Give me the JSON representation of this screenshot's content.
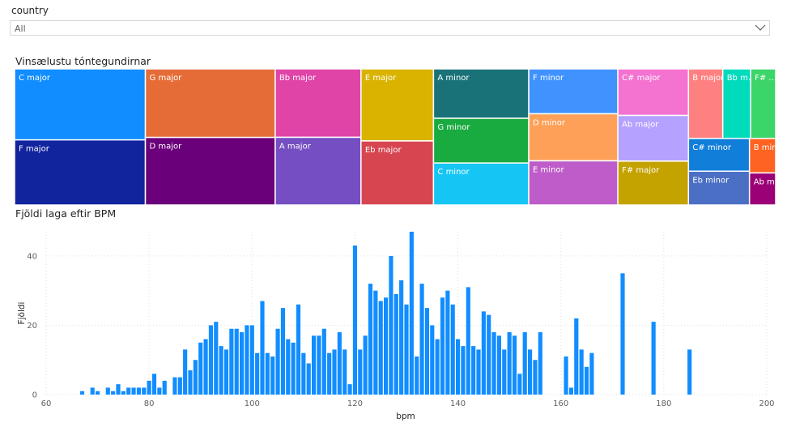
{
  "slicer": {
    "label": "country",
    "value": "All"
  },
  "colors": {
    "C major": "#118DFF",
    "F major": "#12239E",
    "G major": "#E66C37",
    "D major": "#6B007B",
    "Bb major": "#E044A7",
    "A major": "#744EC2",
    "E major": "#D9B300",
    "Eb major": "#D64550",
    "A minor": "#197278",
    "G minor": "#1AAB40",
    "C minor": "#15C6F4",
    "F minor": "#4092FF",
    "D minor": "#FFA058",
    "E minor": "#BE5DC9",
    "C# major": "#F472D0",
    "Ab major": "#B5A1FF",
    "F# major": "#C4A200",
    "B major": "#FF8080",
    "Bb minor": "#00DBBC",
    "F# minor": "#3BD56A",
    "C# minor": "#117ED9",
    "Eb minor": "#4B6FC4",
    "B minor": "#FF6321",
    "Ab minor": "#9B0077",
    "bar": "#118DFF"
  },
  "chart_data": [
    {
      "type": "treemap",
      "title": "Vinsælustu tóntegundirnar",
      "items": [
        {
          "label": "C major",
          "value": 144
        },
        {
          "label": "F major",
          "value": 132
        },
        {
          "label": "G major",
          "value": 138
        },
        {
          "label": "D major",
          "value": 136
        },
        {
          "label": "Bb major",
          "value": 91
        },
        {
          "label": "A major",
          "value": 90
        },
        {
          "label": "E major",
          "value": 81
        },
        {
          "label": "Eb major",
          "value": 72
        },
        {
          "label": "A minor",
          "value": 73
        },
        {
          "label": "G minor",
          "value": 66
        },
        {
          "label": "C minor",
          "value": 62
        },
        {
          "label": "F minor",
          "value": 62
        },
        {
          "label": "D minor",
          "value": 65
        },
        {
          "label": "E minor",
          "value": 61
        },
        {
          "label": "C# major",
          "value": 51
        },
        {
          "label": "Ab major",
          "value": 50
        },
        {
          "label": "F# major",
          "value": 48
        },
        {
          "label": "B major",
          "value": 37
        },
        {
          "label": "Bb minor",
          "value": 30,
          "display": "Bb m..."
        },
        {
          "label": "F# minor",
          "value": 27,
          "display": "F# ..."
        },
        {
          "label": "C# minor",
          "value": 31
        },
        {
          "label": "Eb minor",
          "value": 32
        },
        {
          "label": "B minor",
          "value": 14
        },
        {
          "label": "Ab minor",
          "value": 13,
          "display": "Ab mi..."
        }
      ]
    },
    {
      "type": "bar",
      "title": "Fjöldi laga eftir BPM",
      "xlabel": "bpm",
      "ylabel": "Fjöldi",
      "xlim": [
        60,
        200
      ],
      "ylim": [
        0,
        47
      ],
      "xticks": [
        60,
        80,
        100,
        120,
        140,
        160,
        180,
        200
      ],
      "yticks": [
        0,
        20,
        40
      ],
      "grid": true,
      "bin_width": 1,
      "x": [
        67,
        69,
        70,
        72,
        73,
        74,
        75,
        76,
        77,
        78,
        79,
        80,
        81,
        82,
        83,
        84,
        85,
        86,
        87,
        88,
        89,
        90,
        91,
        92,
        93,
        94,
        95,
        96,
        97,
        98,
        99,
        100,
        101,
        102,
        103,
        104,
        105,
        106,
        107,
        108,
        109,
        110,
        111,
        112,
        113,
        114,
        115,
        116,
        117,
        118,
        119,
        120,
        121,
        122,
        123,
        124,
        125,
        126,
        127,
        128,
        129,
        130,
        131,
        132,
        133,
        134,
        135,
        136,
        137,
        138,
        139,
        140,
        141,
        142,
        143,
        144,
        145,
        146,
        147,
        148,
        149,
        150,
        151,
        152,
        153,
        154,
        155,
        156,
        161,
        162,
        163,
        164,
        165,
        166,
        172,
        178,
        185
      ],
      "values": [
        1,
        2,
        1,
        2,
        1,
        3,
        1,
        2,
        2,
        2,
        2,
        4,
        6,
        2,
        4,
        0,
        5,
        5,
        13,
        7,
        10,
        15,
        16,
        20,
        21,
        14,
        13,
        19,
        19,
        18,
        20,
        20,
        12,
        27,
        12,
        11,
        19,
        25,
        16,
        15,
        26,
        12,
        9,
        17,
        17,
        19,
        12,
        13,
        18,
        13,
        3,
        43,
        13,
        17,
        32,
        30,
        27,
        28,
        40,
        29,
        33,
        26,
        47,
        11,
        32,
        25,
        20,
        16,
        28,
        30,
        26,
        16,
        14,
        31,
        14,
        13,
        24,
        23,
        18,
        17,
        13,
        18,
        17,
        6,
        18,
        13,
        10,
        18,
        11,
        2,
        22,
        13,
        8,
        12,
        35,
        21,
        13
      ]
    }
  ]
}
